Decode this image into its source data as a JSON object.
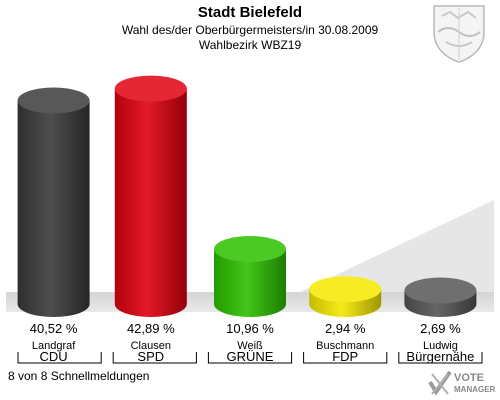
{
  "header": {
    "title": "Stadt Bielefeld",
    "subtitle": "Wahl des/der Oberbürgermeisters/in 30.08.2009",
    "district": "Wahlbezirk WBZ19"
  },
  "footer": {
    "status": "8 von 8 Schnellmeldungen"
  },
  "brand": {
    "line1": "VOTE",
    "line2": "MANAGER"
  },
  "icons": {
    "crest": "coat-of-arms-icon",
    "brand_mark": "vote-check-icon"
  },
  "chart_data": {
    "type": "bar",
    "title": "Stadt Bielefeld",
    "categories": [
      "Landgraf",
      "Clausen",
      "Weiß",
      "Buschmann",
      "Ludwig"
    ],
    "parties": [
      "CDU",
      "SPD",
      "GRÜNE",
      "FDP",
      "Bürgernähe"
    ],
    "values": [
      40.52,
      42.89,
      10.96,
      2.94,
      2.69
    ],
    "value_labels": [
      "40,52 %",
      "42,89 %",
      "10,96 %",
      "2,94 %",
      "2,69 %"
    ],
    "colors": [
      "#3a3a3a",
      "#e00010",
      "#2ec000",
      "#f5e800",
      "#555555"
    ],
    "ylim": [
      0,
      45
    ],
    "grid": false,
    "legend": "none"
  }
}
